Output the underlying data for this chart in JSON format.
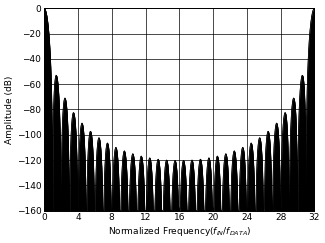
{
  "ylabel": "Amplitude (dB)",
  "xlim": [
    0,
    32
  ],
  "ylim": [
    -160,
    0
  ],
  "xticks": [
    0,
    4,
    8,
    12,
    16,
    20,
    24,
    28,
    32
  ],
  "yticks": [
    0,
    -20,
    -40,
    -60,
    -80,
    -100,
    -120,
    -140,
    -160
  ],
  "osr": 32,
  "order": 4,
  "num_points": 16000,
  "line_color": "#000000",
  "fill_color": "#000000",
  "bg_color": "#ffffff",
  "grid_color": "#000000",
  "figsize": [
    3.25,
    2.43
  ],
  "dpi": 100
}
